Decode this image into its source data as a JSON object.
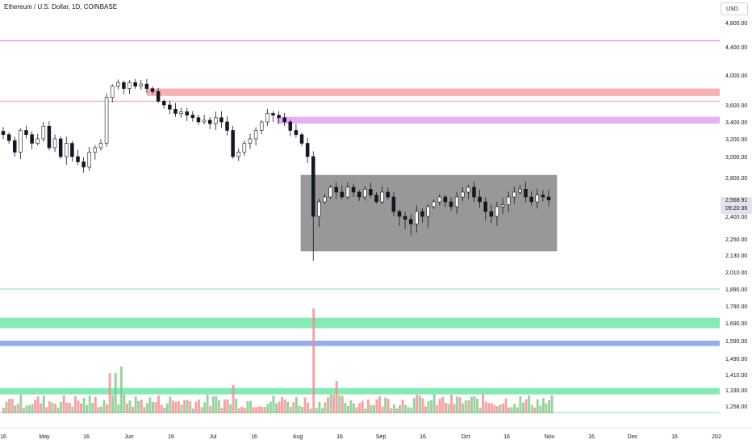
{
  "header": {
    "symbol_title": "Ethereum / U.S. Dollar, 1D, COINBASE"
  },
  "price_scale": {
    "currency": "USD",
    "ticks": [
      "4,800.00",
      "4,400.00",
      "4,000.00",
      "3,600.00",
      "3,400.00",
      "3,200.00",
      "3,000.00",
      "2,800.00",
      "2,400.00",
      "2,250.00",
      "2,130.00",
      "2,010.00",
      "1,890.00",
      "1,790.00",
      "1,690.00",
      "1,590.00",
      "1,490.00",
      "1,410.00",
      "1,330.00",
      "1,258.00"
    ],
    "last_price": "2,568.91",
    "countdown": "09:20:36"
  },
  "time_axis": {
    "labels": [
      "16",
      "May",
      "16",
      "Jun",
      "16",
      "Jul",
      "16",
      "Aug",
      "16",
      "Sep",
      "16",
      "Oct",
      "16",
      "Nov",
      "16",
      "Dec",
      "16",
      "202"
    ]
  },
  "colors": {
    "bull": "#26a69a",
    "bear": "#ef5350",
    "candle": "#131722",
    "resistance": "#f7a1a8",
    "resistance_violet": "#e3a1f5",
    "top_line": "#e38cf0",
    "support_green": "#6fe8a9",
    "support_blue": "#7f9df0",
    "range_box": "#8a8a8a"
  },
  "chart_data": {
    "type": "candlestick",
    "title": "Ethereum / U.S. Dollar, 1D, COINBASE",
    "ylabel": "USD",
    "ylim": [
      1220,
      4950
    ],
    "y_scale": "nonlinear (tick labels as printed)",
    "x_labels": [
      "16",
      "May",
      "16",
      "Jun",
      "16",
      "Jul",
      "16",
      "Aug",
      "16",
      "Sep",
      "16",
      "Oct",
      "16",
      "Nov",
      "16",
      "Dec",
      "16",
      "202"
    ],
    "grid": false,
    "last_price": 2568.91,
    "close_series_approx": [
      3250,
      3180,
      3050,
      3300,
      3250,
      3150,
      3200,
      3350,
      3100,
      3200,
      3000,
      3150,
      3000,
      2950,
      2900,
      3050,
      3100,
      3150,
      3700,
      3850,
      3900,
      3820,
      3900,
      3850,
      3880,
      3820,
      3780,
      3650,
      3600,
      3550,
      3500,
      3520,
      3480,
      3450,
      3400,
      3420,
      3380,
      3450,
      3400,
      3300,
      3000,
      3050,
      3150,
      3200,
      3300,
      3400,
      3500,
      3480,
      3450,
      3400,
      3300,
      3250,
      3150,
      3000,
      2400,
      2550,
      2600,
      2700,
      2650,
      2600,
      2700,
      2650,
      2600,
      2680,
      2620,
      2550,
      2650,
      2600,
      2450,
      2400,
      2380,
      2350,
      2450,
      2400,
      2500,
      2550,
      2600,
      2550,
      2500,
      2600,
      2650,
      2700,
      2600,
      2550,
      2450,
      2400,
      2500,
      2520,
      2600,
      2650,
      2680,
      2600,
      2550,
      2620,
      2600,
      2568.91
    ],
    "horizontal_levels": [
      {
        "kind": "line",
        "price": 4500,
        "color": "#e38cf0"
      },
      {
        "kind": "zone",
        "from": 3720,
        "to": 3820,
        "color": "#f7a1a8"
      },
      {
        "kind": "line",
        "price": 3650,
        "color": "#f7a1a8"
      },
      {
        "kind": "zone",
        "from": 3380,
        "to": 3460,
        "color": "#e3a1f5"
      },
      {
        "kind": "line",
        "price": 1890,
        "color": "#6fe8a9"
      },
      {
        "kind": "zone",
        "from": 1660,
        "to": 1720,
        "color": "#6fe8a9"
      },
      {
        "kind": "zone",
        "from": 1560,
        "to": 1590,
        "color": "#7f9df0"
      },
      {
        "kind": "zone",
        "from": 1310,
        "to": 1340,
        "color": "#6fe8a9"
      }
    ],
    "range_box": {
      "from_label": "Aug",
      "to_label": "Oct-Nov",
      "high": 2850,
      "low": 2150
    }
  }
}
